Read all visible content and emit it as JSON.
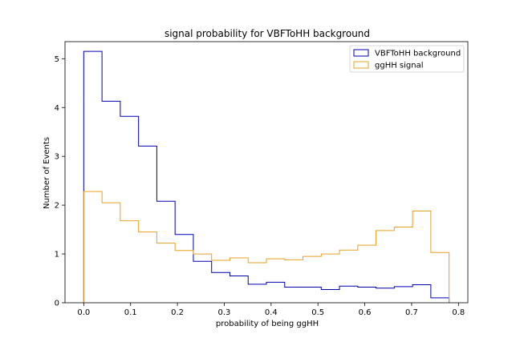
{
  "chart_data": {
    "type": "histogram-step",
    "title": "signal probability for VBFToHH background",
    "xlabel": "probability of being ggHH",
    "ylabel": "Number of Events",
    "xlim": [
      -0.04,
      0.82
    ],
    "ylim": [
      0,
      5.35
    ],
    "xticks": [
      0.0,
      0.1,
      0.2,
      0.3,
      0.4,
      0.5,
      0.6,
      0.7,
      0.8
    ],
    "xtick_labels": [
      "0.0",
      "0.1",
      "0.2",
      "0.3",
      "0.4",
      "0.5",
      "0.6",
      "0.7",
      "0.8"
    ],
    "yticks": [
      0,
      1,
      2,
      3,
      4,
      5
    ],
    "ytick_labels": [
      "0",
      "1",
      "2",
      "3",
      "4",
      "5"
    ],
    "grid": false,
    "legend_position": "upper right",
    "bin_edges": [
      0.0,
      0.039,
      0.078,
      0.117,
      0.156,
      0.195,
      0.234,
      0.273,
      0.312,
      0.351,
      0.39,
      0.429,
      0.468,
      0.507,
      0.546,
      0.585,
      0.624,
      0.663,
      0.702,
      0.741,
      0.78
    ],
    "series": [
      {
        "name": "VBFToHH background",
        "color": "#0000b3",
        "values": [
          5.15,
          4.13,
          3.82,
          3.21,
          2.08,
          1.4,
          0.85,
          0.62,
          0.55,
          0.38,
          0.42,
          0.32,
          0.32,
          0.27,
          0.34,
          0.32,
          0.3,
          0.33,
          0.37,
          0.1
        ]
      },
      {
        "name": "ggHH signal",
        "color": "#e8a020",
        "values": [
          2.28,
          2.05,
          1.68,
          1.45,
          1.22,
          1.07,
          1.0,
          0.87,
          0.92,
          0.82,
          0.9,
          0.88,
          0.95,
          1.0,
          1.08,
          1.18,
          1.48,
          1.55,
          1.88,
          1.03
        ]
      }
    ]
  }
}
